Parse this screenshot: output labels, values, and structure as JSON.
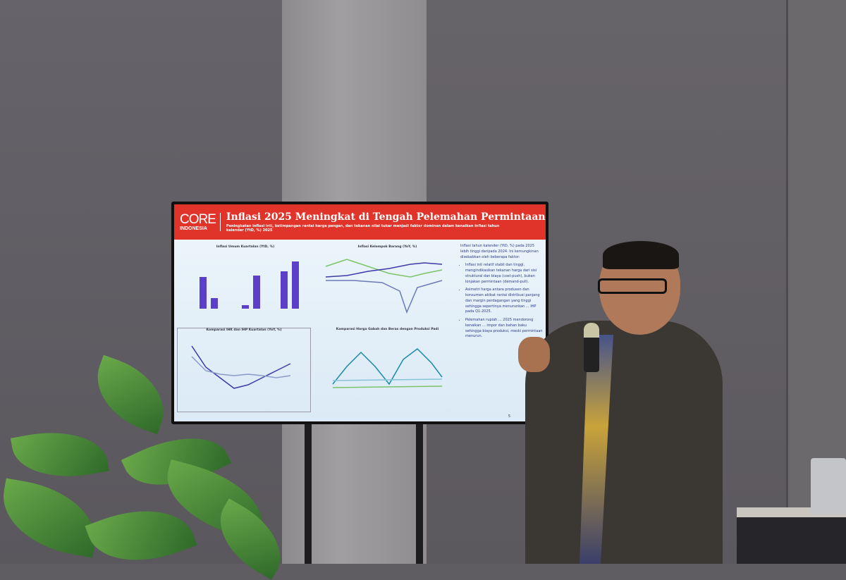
{
  "slide": {
    "logo": {
      "line1": "CORE",
      "line2": "INDONESIA"
    },
    "title": "Inflasi 2025 Meningkat di Tengah Pelemahan Permintaan",
    "subtitle": "Peningkatan inflasi inti, ketimpangan rantai harga pangan, dan tekanan nilai tukar menjadi faktor dominan dalam kenaikan inflasi tahun kalender (YtD, %) 2025",
    "charts": [
      {
        "title": "Inflasi Umum Kuartalan (YtD, %)"
      },
      {
        "title": "Inflasi Kelompok Barang (YoY, %)"
      },
      {
        "title": "Komparasi IHK dan IHP Kuartalan (YoY, %)"
      },
      {
        "title": "Komparasi Harga Gabah dan Beras dengan Produksi Padi"
      }
    ],
    "side_intro": "Inflasi tahun kalender (YtD, %) pada 2025 lebih tinggi daripada 2024. Ini kemungkinan disebabkan oleh beberapa faktor:",
    "bullets": [
      "Inflasi inti relatif stabil dan tinggi, mengindikasikan tekanan harga dari sisi struktural dan biaya (cost-push), bukan lonjakan permintaan (demand-pull).",
      "Asimetri harga antara produsen dan konsumen akibat rantai distribusi panjang dan margin perdagangan yang tinggi sehingga sepertinya menurunkan ... IHP pada Q1-2025.",
      "Pelemahan rupiah ... 2025 mendorong kenaikan ... impor dan bahan baku sehingga biaya produksi, meski permintaan menurun."
    ],
    "page_number": "5",
    "colors": {
      "header": "#e0342b",
      "background": "#e6f1f9"
    }
  }
}
